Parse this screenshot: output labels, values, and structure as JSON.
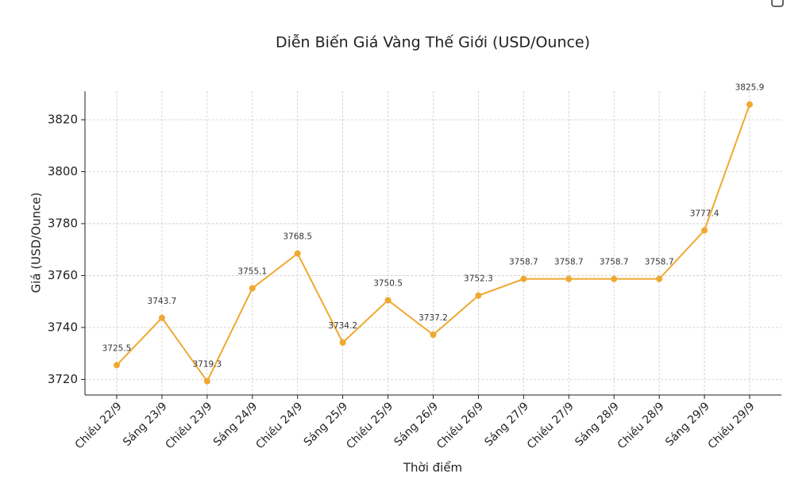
{
  "chart_data": {
    "type": "line",
    "title": "Diễn Biến Giá Vàng Thế Giới (USD/Ounce)",
    "x_label": "Thời điểm",
    "y_label": "Giá (USD/Ounce)",
    "categories": [
      "Chiều 22/9",
      "Sáng 23/9",
      "Chiều 23/9",
      "Sáng 24/9",
      "Chiều 24/9",
      "Sáng 25/9",
      "Chiều 25/9",
      "Sáng 26/9",
      "Chiều 26/9",
      "Sáng 27/9",
      "Chiều 27/9",
      "Sáng 28/9",
      "Chiều 28/9",
      "Sáng 29/9",
      "Chiều 29/9"
    ],
    "values": [
      3725.5,
      3743.7,
      3719.3,
      3755.1,
      3768.5,
      3734.2,
      3750.5,
      3737.2,
      3752.3,
      3758.7,
      3758.7,
      3758.7,
      3758.7,
      3777.4,
      3825.9
    ],
    "color": "#f0a830",
    "ylim": [
      3714,
      3831
    ],
    "yticks": [
      3720,
      3740,
      3760,
      3780,
      3800,
      3820
    ],
    "grid": true
  }
}
